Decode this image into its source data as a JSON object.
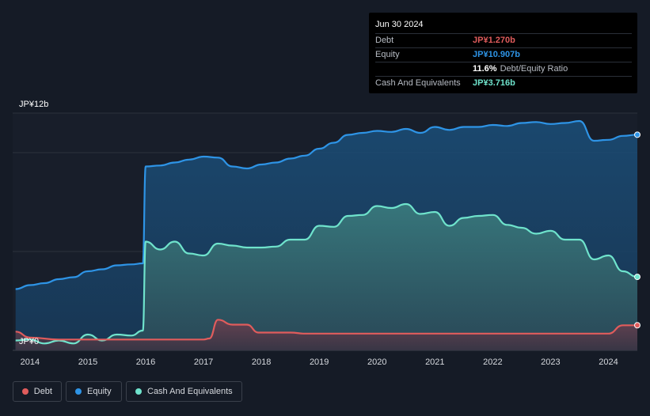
{
  "tooltip": {
    "date": "Jun 30 2024",
    "rows": {
      "debt": {
        "label": "Debt",
        "value": "JP¥1.270b"
      },
      "equity": {
        "label": "Equity",
        "value": "JP¥10.907b"
      },
      "ratio": {
        "label": "",
        "value": "11.6%",
        "suffix": "Debt/Equity Ratio"
      },
      "cash": {
        "label": "Cash And Equivalents",
        "value": "JP¥3.716b"
      }
    }
  },
  "legend": {
    "debt": "Debt",
    "equity": "Equity",
    "cash": "Cash And Equivalents"
  },
  "colors": {
    "debt": "#e05c5c",
    "equity": "#2e94e6",
    "cash": "#6fe3cc"
  },
  "chart_data": {
    "type": "area",
    "y_tick_labels": [
      "JP¥12b",
      "JP¥0"
    ],
    "ylim": [
      0,
      12
    ],
    "xlim": [
      2013.7,
      2024.5
    ],
    "x_ticks": [
      2014,
      2015,
      2016,
      2017,
      2018,
      2019,
      2020,
      2021,
      2022,
      2023,
      2024
    ],
    "x_tick_labels": [
      "2014",
      "2015",
      "2016",
      "2017",
      "2018",
      "2019",
      "2020",
      "2021",
      "2022",
      "2023",
      "2024"
    ],
    "grid": true,
    "series": [
      {
        "name": "Equity",
        "x": [
          2013.75,
          2014.0,
          2014.25,
          2014.5,
          2014.75,
          2015.0,
          2015.25,
          2015.5,
          2015.75,
          2015.95,
          2016.0,
          2016.25,
          2016.5,
          2016.75,
          2017.0,
          2017.25,
          2017.5,
          2017.75,
          2018.0,
          2018.25,
          2018.5,
          2018.75,
          2019.0,
          2019.25,
          2019.5,
          2019.75,
          2020.0,
          2020.25,
          2020.5,
          2020.75,
          2021.0,
          2021.25,
          2021.5,
          2021.75,
          2022.0,
          2022.25,
          2022.5,
          2022.75,
          2023.0,
          2023.25,
          2023.5,
          2023.75,
          2024.0,
          2024.25,
          2024.5
        ],
        "values": [
          3.1,
          3.3,
          3.4,
          3.6,
          3.7,
          4.0,
          4.1,
          4.3,
          4.35,
          4.4,
          9.3,
          9.35,
          9.5,
          9.65,
          9.8,
          9.75,
          9.3,
          9.2,
          9.4,
          9.5,
          9.7,
          9.85,
          10.2,
          10.5,
          10.9,
          11.0,
          11.1,
          11.05,
          11.2,
          11.0,
          11.3,
          11.15,
          11.3,
          11.3,
          11.4,
          11.35,
          11.5,
          11.55,
          11.45,
          11.5,
          11.6,
          10.6,
          10.65,
          10.85,
          10.907
        ]
      },
      {
        "name": "Cash And Equivalents",
        "x": [
          2013.75,
          2014.0,
          2014.25,
          2014.5,
          2014.75,
          2015.0,
          2015.25,
          2015.5,
          2015.75,
          2015.95,
          2016.0,
          2016.25,
          2016.5,
          2016.75,
          2017.0,
          2017.25,
          2017.5,
          2017.75,
          2018.0,
          2018.25,
          2018.5,
          2018.75,
          2019.0,
          2019.25,
          2019.5,
          2019.75,
          2020.0,
          2020.25,
          2020.5,
          2020.75,
          2021.0,
          2021.25,
          2021.5,
          2021.75,
          2022.0,
          2022.25,
          2022.5,
          2022.75,
          2023.0,
          2023.25,
          2023.5,
          2023.75,
          2024.0,
          2024.25,
          2024.5
        ],
        "values": [
          0.5,
          0.55,
          0.35,
          0.5,
          0.35,
          0.8,
          0.5,
          0.8,
          0.75,
          1.0,
          5.5,
          5.1,
          5.5,
          4.9,
          4.8,
          5.4,
          5.3,
          5.2,
          5.2,
          5.25,
          5.6,
          5.6,
          6.3,
          6.25,
          6.8,
          6.85,
          7.3,
          7.2,
          7.4,
          6.9,
          7.0,
          6.3,
          6.7,
          6.8,
          6.85,
          6.35,
          6.2,
          5.9,
          6.05,
          5.6,
          5.6,
          4.6,
          4.8,
          4.0,
          3.716
        ]
      },
      {
        "name": "Debt",
        "x": [
          2013.75,
          2014.0,
          2014.5,
          2015.0,
          2015.5,
          2016.0,
          2016.5,
          2017.0,
          2017.1,
          2017.25,
          2017.5,
          2017.75,
          2017.95,
          2018.5,
          2018.75,
          2019.0,
          2019.5,
          2020.0,
          2020.5,
          2021.0,
          2021.5,
          2022.0,
          2022.5,
          2023.0,
          2023.5,
          2023.8,
          2024.0,
          2024.25,
          2024.5
        ],
        "values": [
          0.95,
          0.65,
          0.55,
          0.55,
          0.55,
          0.55,
          0.55,
          0.55,
          0.6,
          1.55,
          1.3,
          1.3,
          0.9,
          0.9,
          0.85,
          0.85,
          0.85,
          0.85,
          0.85,
          0.85,
          0.85,
          0.85,
          0.85,
          0.85,
          0.85,
          0.85,
          0.85,
          1.27,
          1.27
        ]
      }
    ]
  }
}
